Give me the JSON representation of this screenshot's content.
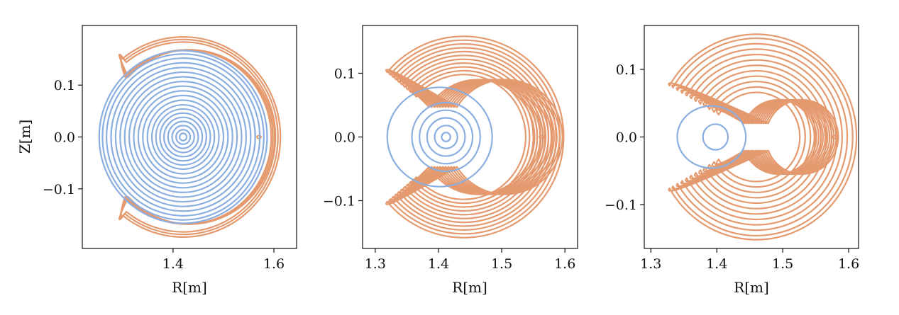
{
  "colors": {
    "core": "#8aaee0",
    "edge": "#e49a6e",
    "frame": "#111111"
  },
  "chart_data": [
    {
      "type": "line",
      "title": "",
      "xlabel": "R[m]",
      "ylabel": "Z[m]",
      "xlim": [
        1.22,
        1.645
      ],
      "ylim": [
        -0.215,
        0.215
      ],
      "xticks": [
        "1.4",
        "1.6"
      ],
      "xtick_values": [
        1.4,
        1.6
      ],
      "yticks": [
        "0.1",
        "0.0",
        "−0.1"
      ],
      "ytick_values": [
        0.1,
        0.0,
        -0.1
      ],
      "grid": false,
      "series": [
        {
          "role": "core",
          "shape": "circles",
          "center": [
            1.42,
            0.0
          ],
          "radii": [
            0.007,
            0.014,
            0.022,
            0.03,
            0.038,
            0.046,
            0.054,
            0.062,
            0.071,
            0.08,
            0.089,
            0.098,
            0.107,
            0.116,
            0.125,
            0.134,
            0.143,
            0.152,
            0.16,
            0.1665
          ]
        },
        {
          "role": "edge",
          "shape": "crescents",
          "center": [
            1.42,
            0.0
          ],
          "inner_radius": 0.168,
          "outer_radii": [
            0.183,
            0.188,
            0.193
          ],
          "offsets": [
            0.012,
            0.018,
            0.024
          ],
          "tip_angle_deg": 128
        }
      ]
    },
    {
      "type": "line",
      "title": "",
      "xlabel": "R[m]",
      "ylabel": "",
      "xlim": [
        1.28,
        1.62
      ],
      "ylim": [
        -0.175,
        0.175
      ],
      "xticks": [
        "1.3",
        "1.4",
        "1.5",
        "1.6"
      ],
      "xtick_values": [
        1.3,
        1.4,
        1.5,
        1.6
      ],
      "yticks": [
        "0.1",
        "0.0",
        "−0.1"
      ],
      "ytick_values": [
        0.1,
        0.0,
        -0.1
      ],
      "grid": false,
      "series": [
        {
          "role": "core",
          "shape": "circles",
          "center": [
            1.412,
            0.0
          ],
          "radii": [
            0.007,
            0.018,
            0.03,
            0.042,
            0.054
          ],
          "separatrix": {
            "center": [
              1.402,
              0.0
            ],
            "rx": 0.083,
            "ry": 0.078
          }
        },
        {
          "role": "edge",
          "shape": "crescents",
          "center": [
            1.44,
            0.0
          ],
          "inner_radius": 0.09,
          "outer_radii": [
            0.098,
            0.104,
            0.11,
            0.116,
            0.122,
            0.128,
            0.134,
            0.14,
            0.146,
            0.152,
            0.158
          ],
          "offsets": [
            0.04,
            0.048,
            0.056,
            0.064,
            0.072,
            0.08,
            0.088,
            0.096,
            0.104,
            0.112,
            0.12
          ],
          "tip_angle_deg": 140
        }
      ]
    },
    {
      "type": "line",
      "title": "",
      "xlabel": "R[m]",
      "ylabel": "",
      "xlim": [
        1.29,
        1.615
      ],
      "ylim": [
        -0.165,
        0.165
      ],
      "xticks": [
        "1.3",
        "1.4",
        "1.5",
        "1.6"
      ],
      "xtick_values": [
        1.3,
        1.4,
        1.5,
        1.6
      ],
      "yticks": [
        "0.1",
        "0.0",
        "−0.1"
      ],
      "ytick_values": [
        0.1,
        0.0,
        -0.1
      ],
      "grid": false,
      "series": [
        {
          "role": "core",
          "shape": "circles",
          "center": [
            1.398,
            0.0
          ],
          "radii": [
            0.019
          ],
          "separatrix": {
            "center": [
              1.392,
              0.0
            ],
            "rx": 0.052,
            "ry": 0.046
          }
        },
        {
          "role": "edge",
          "shape": "crescents",
          "center": [
            1.46,
            0.0
          ],
          "inner_radius": 0.055,
          "outer_radii": [
            0.066,
            0.074,
            0.082,
            0.09,
            0.098,
            0.106,
            0.114,
            0.122,
            0.13,
            0.138,
            0.146,
            0.152
          ],
          "offsets": [
            0.06,
            0.066,
            0.072,
            0.078,
            0.084,
            0.09,
            0.096,
            0.102,
            0.108,
            0.114,
            0.12,
            0.126
          ],
          "tip_angle_deg": 150
        }
      ]
    }
  ]
}
